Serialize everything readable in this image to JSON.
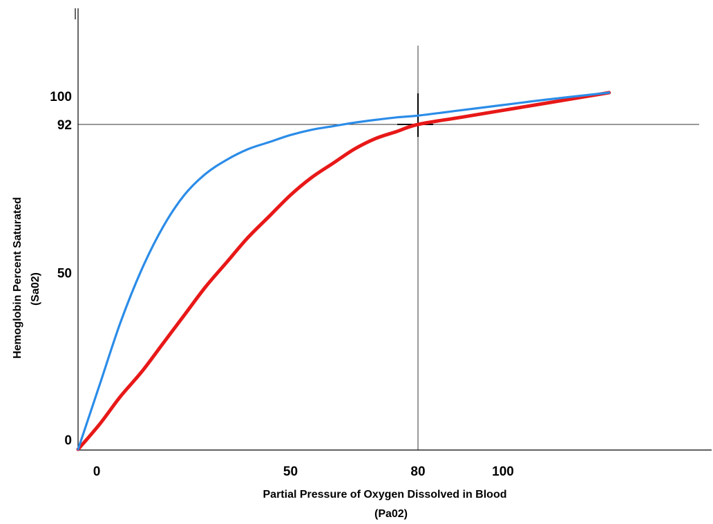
{
  "chart_data": {
    "type": "line",
    "title": "",
    "xlabel": "Partial Pressure of Oxygen Dissolved in Blood",
    "xlabel_sub": "(Pa02)",
    "ylabel": "Hemoglobin Percent Saturated",
    "ylabel_sub": "(Sa02)",
    "xlim": [
      0,
      160
    ],
    "ylim": [
      0,
      120
    ],
    "x_ticks": [
      {
        "value": 0,
        "label": "0"
      },
      {
        "value": 50,
        "label": "50"
      },
      {
        "value": 80,
        "label": "80"
      },
      {
        "value": 100,
        "label": "100"
      }
    ],
    "y_ticks": [
      {
        "value": 0,
        "label": "0"
      },
      {
        "value": 50,
        "label": "50"
      },
      {
        "value": 92,
        "label": "92"
      },
      {
        "value": 100,
        "label": "100"
      }
    ],
    "reference_lines": {
      "vertical_x": 80,
      "horizontal_y": 92
    },
    "series": [
      {
        "color": "#e81818",
        "x": [
          0,
          5,
          10,
          15,
          20,
          25,
          30,
          35,
          40,
          45,
          50,
          55,
          60,
          65,
          70,
          75,
          80,
          90,
          100,
          110,
          125
        ],
        "y": [
          0,
          7,
          15,
          22,
          30,
          38,
          46,
          53,
          60,
          66,
          72,
          77,
          81,
          85,
          88,
          90,
          92,
          94,
          96,
          98,
          101
        ]
      },
      {
        "color": "#2b8ce8",
        "x": [
          0,
          5,
          10,
          15,
          20,
          25,
          30,
          35,
          40,
          45,
          50,
          55,
          60,
          65,
          70,
          75,
          80,
          90,
          100,
          110,
          125
        ],
        "y": [
          0,
          18,
          36,
          51,
          63,
          72,
          78,
          82,
          85,
          87,
          89,
          90.5,
          91.5,
          92.5,
          93.3,
          94,
          94.5,
          96,
          97.5,
          99,
          101
        ]
      }
    ]
  }
}
